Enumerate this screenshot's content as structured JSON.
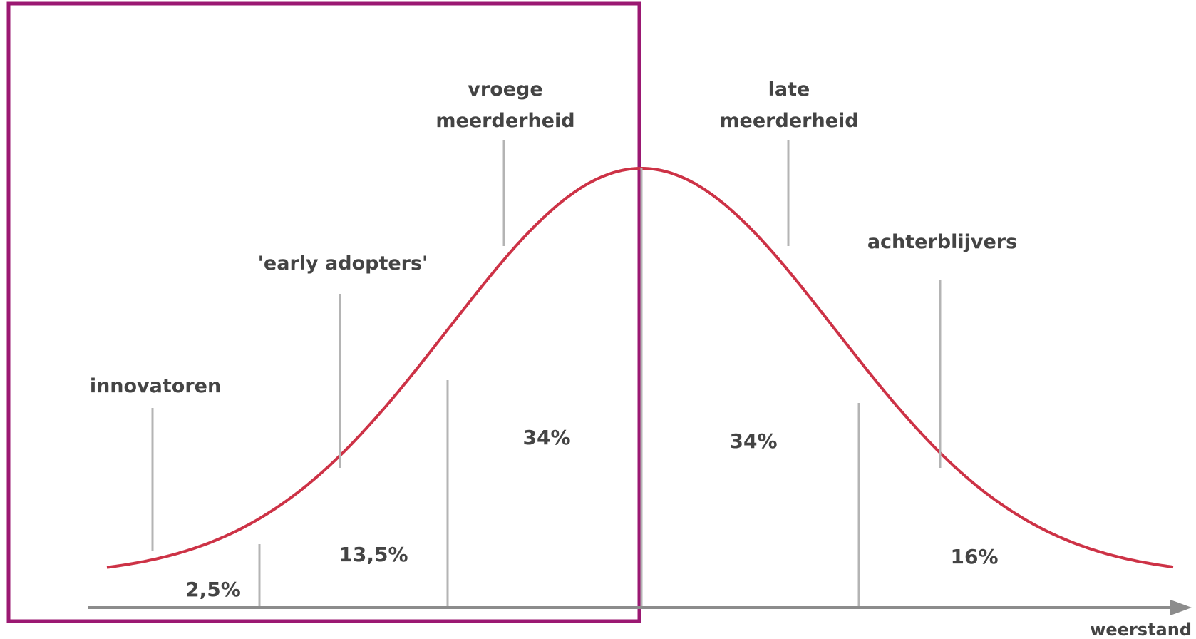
{
  "diagram": {
    "colors": {
      "curve": "#cd3246",
      "highlight_frame": "#9b1872",
      "axis": "#8c8c8c",
      "text": "#444444",
      "guide_lines": "#b4b4b4"
    },
    "segments": [
      {
        "label": "innovatoren",
        "percent": "2,5%"
      },
      {
        "label": "'early adopters'",
        "percent": "13,5%"
      },
      {
        "label_lines": [
          "vroege",
          "meerderheid"
        ],
        "percent": "34%"
      },
      {
        "label_lines": [
          "late",
          "meerderheid"
        ],
        "percent": "34%"
      },
      {
        "label": "achterblijvers",
        "percent": "16%"
      }
    ],
    "axis_label": "weerstand"
  }
}
